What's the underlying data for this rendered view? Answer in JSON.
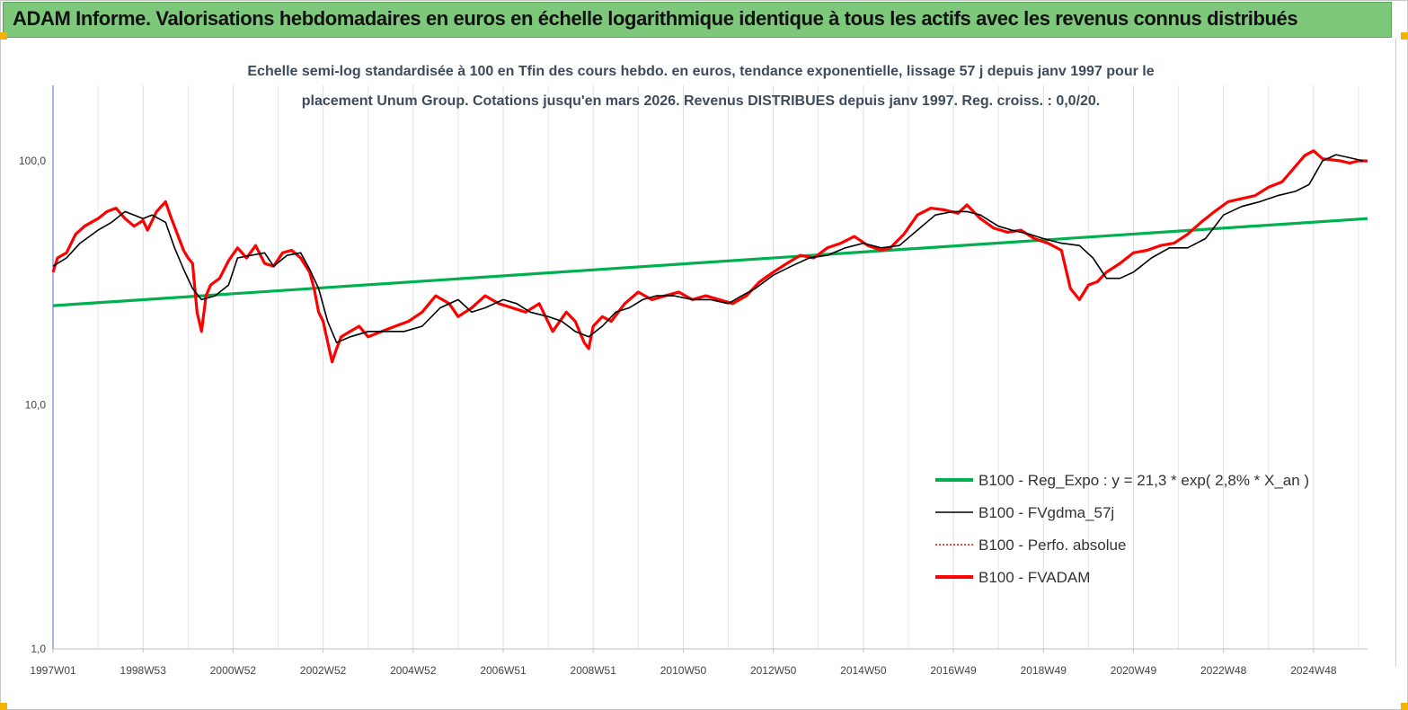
{
  "header": {
    "title": "ADAM Informe. Valorisations hebdomadaires en euros en échelle logarithmique identique à tous les actifs avec les revenus connus distribués"
  },
  "chart_data": {
    "type": "line",
    "title_lines": [
      "Echelle semi-log standardisée à 100 en Tfin des cours hebdo. en euros, tendance exponentielle, lissage 57 j depuis janv 1997 pour le",
      "placement Unum Group. Cotations jusqu'en mars 2026. Revenus DISTRIBUES depuis janv 1997. Reg. croiss. : 0,0/20."
    ],
    "xlabel": "",
    "ylabel": "",
    "yscale": "log",
    "ylim": [
      1,
      200
    ],
    "xlim": [
      1997.0,
      2026.2
    ],
    "y_ticks": [
      {
        "value": 1,
        "label": "1,0"
      },
      {
        "value": 10,
        "label": "10,0"
      },
      {
        "value": 100,
        "label": "100,0"
      }
    ],
    "x_ticks": [
      {
        "value": 1997.0,
        "label": "1997W01"
      },
      {
        "value": 1999.0,
        "label": "1998W53"
      },
      {
        "value": 2001.0,
        "label": "2000W52"
      },
      {
        "value": 2003.0,
        "label": "2002W52"
      },
      {
        "value": 2005.0,
        "label": "2004W52"
      },
      {
        "value": 2007.0,
        "label": "2006W51"
      },
      {
        "value": 2009.0,
        "label": "2008W51"
      },
      {
        "value": 2011.0,
        "label": "2010W50"
      },
      {
        "value": 2013.0,
        "label": "2012W50"
      },
      {
        "value": 2015.0,
        "label": "2014W50"
      },
      {
        "value": 2017.0,
        "label": "2016W49"
      },
      {
        "value": 2019.0,
        "label": "2018W49"
      },
      {
        "value": 2021.0,
        "label": "2020W49"
      },
      {
        "value": 2023.0,
        "label": "2022W48"
      },
      {
        "value": 2025.0,
        "label": "2024W48"
      }
    ],
    "grid": "vertical",
    "legend_position": "bottom-right",
    "series": [
      {
        "name": "B100 - Reg_Expo : y = 21,3 * exp( 2,8% *  X_an )",
        "color": "#00b050",
        "style": "thick",
        "x": [
          1997.0,
          2026.2
        ],
        "values": [
          25.5,
          58.0
        ]
      },
      {
        "name": "B100 - FVgdma_57j",
        "color": "#000000",
        "style": "thin",
        "x": [
          1997.0,
          1997.3,
          1997.6,
          1998.0,
          1998.3,
          1998.6,
          1999.0,
          1999.2,
          1999.5,
          1999.7,
          1999.9,
          2000.1,
          2000.3,
          2000.6,
          2000.9,
          2001.1,
          2001.4,
          2001.7,
          2001.9,
          2002.2,
          2002.5,
          2002.7,
          2002.9,
          2003.1,
          2003.3,
          2003.6,
          2004.0,
          2004.4,
          2004.8,
          2005.2,
          2005.6,
          2006.0,
          2006.3,
          2006.6,
          2007.0,
          2007.3,
          2007.6,
          2008.0,
          2008.3,
          2008.6,
          2008.9,
          2009.2,
          2009.5,
          2009.8,
          2010.1,
          2010.4,
          2010.8,
          2011.2,
          2011.6,
          2012.0,
          2012.3,
          2012.6,
          2013.0,
          2013.4,
          2013.8,
          2014.2,
          2014.6,
          2015.0,
          2015.4,
          2015.8,
          2016.2,
          2016.6,
          2017.0,
          2017.3,
          2017.6,
          2018.0,
          2018.3,
          2018.7,
          2019.0,
          2019.4,
          2019.8,
          2020.1,
          2020.4,
          2020.7,
          2021.0,
          2021.4,
          2021.8,
          2022.2,
          2022.6,
          2023.0,
          2023.4,
          2023.8,
          2024.2,
          2024.6,
          2024.9,
          2025.2,
          2025.5,
          2025.8,
          2026.1
        ],
        "values": [
          37,
          40,
          46,
          52,
          56,
          62,
          58,
          60,
          56,
          44,
          36,
          30,
          27,
          28,
          31,
          40,
          41,
          42,
          37,
          41,
          42,
          36,
          30,
          22,
          18,
          19,
          20,
          20,
          20,
          21,
          25,
          27,
          24,
          25,
          27,
          26,
          24,
          23,
          22,
          20,
          19,
          21,
          24,
          25,
          27,
          28,
          28,
          27,
          27,
          26,
          28,
          30,
          34,
          37,
          40,
          41,
          44,
          46,
          44,
          45,
          52,
          60,
          62,
          62,
          60,
          54,
          52,
          50,
          48,
          46,
          45,
          40,
          33,
          33,
          35,
          40,
          44,
          44,
          48,
          60,
          65,
          68,
          72,
          75,
          80,
          100,
          106,
          103,
          100
        ],
        "note": ""
      },
      {
        "name": "B100 - Perfo. absolue",
        "color": "#ff0000",
        "style": "dotted",
        "x": [],
        "values": []
      },
      {
        "name": "B100 - FVADAM",
        "color": "#ff0000",
        "style": "thick",
        "x": [
          1997.0,
          1997.1,
          1997.3,
          1997.5,
          1997.7,
          1998.0,
          1998.2,
          1998.4,
          1998.6,
          1998.8,
          1999.0,
          1999.1,
          1999.3,
          1999.5,
          1999.6,
          1999.8,
          1999.9,
          2000.0,
          2000.1,
          2000.2,
          2000.3,
          2000.4,
          2000.5,
          2000.7,
          2000.9,
          2001.1,
          2001.3,
          2001.5,
          2001.7,
          2001.9,
          2002.1,
          2002.3,
          2002.5,
          2002.7,
          2002.8,
          2002.9,
          2003.0,
          2003.2,
          2003.3,
          2003.4,
          2003.6,
          2003.8,
          2004.0,
          2004.3,
          2004.6,
          2004.9,
          2005.2,
          2005.5,
          2005.8,
          2006.0,
          2006.3,
          2006.6,
          2006.9,
          2007.2,
          2007.5,
          2007.8,
          2008.1,
          2008.4,
          2008.6,
          2008.8,
          2008.9,
          2009.0,
          2009.2,
          2009.4,
          2009.7,
          2010.0,
          2010.3,
          2010.6,
          2010.9,
          2011.2,
          2011.5,
          2011.8,
          2012.1,
          2012.4,
          2012.7,
          2013.0,
          2013.3,
          2013.6,
          2013.9,
          2014.2,
          2014.5,
          2014.8,
          2015.1,
          2015.4,
          2015.6,
          2015.9,
          2016.2,
          2016.5,
          2016.8,
          2017.1,
          2017.3,
          2017.6,
          2017.9,
          2018.2,
          2018.5,
          2018.8,
          2019.1,
          2019.4,
          2019.6,
          2019.8,
          2020.0,
          2020.2,
          2020.4,
          2020.7,
          2021.0,
          2021.3,
          2021.6,
          2021.9,
          2022.2,
          2022.5,
          2022.8,
          2023.1,
          2023.4,
          2023.7,
          2024.0,
          2024.3,
          2024.6,
          2024.8,
          2025.0,
          2025.2,
          2025.4,
          2025.6,
          2025.8,
          2026.0,
          2026.2
        ],
        "values": [
          35,
          40,
          42,
          50,
          54,
          58,
          62,
          64,
          58,
          54,
          57,
          52,
          62,
          68,
          60,
          48,
          43,
          40,
          38,
          24,
          20,
          28,
          31,
          33,
          39,
          44,
          40,
          45,
          38,
          37,
          42,
          43,
          40,
          35,
          30,
          24,
          22,
          15,
          17,
          19,
          20,
          21,
          19,
          20,
          21,
          22,
          24,
          28,
          26,
          23,
          25,
          28,
          26,
          25,
          24,
          26,
          20,
          24,
          22,
          18,
          17,
          21,
          23,
          22,
          26,
          29,
          27,
          28,
          29,
          27,
          28,
          27,
          26,
          28,
          32,
          35,
          38,
          41,
          40,
          44,
          46,
          49,
          45,
          43,
          44,
          50,
          60,
          64,
          63,
          61,
          66,
          58,
          53,
          51,
          52,
          48,
          46,
          43,
          30,
          27,
          31,
          32,
          35,
          38,
          42,
          43,
          45,
          46,
          50,
          56,
          62,
          68,
          70,
          72,
          78,
          82,
          95,
          105,
          110,
          102,
          101,
          100,
          98,
          100,
          100
        ]
      }
    ]
  }
}
